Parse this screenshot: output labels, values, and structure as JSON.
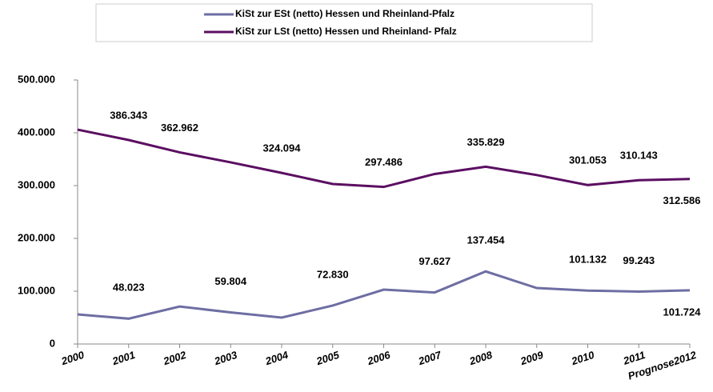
{
  "chart_data": {
    "type": "line",
    "categories": [
      "2000",
      "2001",
      "2002",
      "2003",
      "2004",
      "2005",
      "2006",
      "2007",
      "2008",
      "2009",
      "2010",
      "2011",
      "Prognose2012"
    ],
    "series": [
      {
        "name": "KiSt zur ESt (netto) Hessen und Rheinland-Pfalz",
        "color": "#6e6ea3",
        "values": [
          56000,
          48023,
          71000,
          59804,
          50000,
          72830,
          103000,
          97627,
          137454,
          106000,
          101132,
          99243,
          101724
        ],
        "value_labels": [
          null,
          "48.023",
          null,
          "59.804",
          null,
          "72.830",
          null,
          "97.627",
          "137.454",
          null,
          "101.132",
          "99.243",
          "101.724"
        ]
      },
      {
        "name": "KiSt zur LSt (netto)  Hessen und Rheinland- Pfalz",
        "color": "#5b0f61",
        "values": [
          406000,
          386343,
          362962,
          344000,
          324094,
          303000,
          297486,
          322000,
          335829,
          320000,
          301053,
          310143,
          312586
        ],
        "value_labels": [
          null,
          "386.343",
          "362.962",
          null,
          "324.094",
          null,
          "297.486",
          null,
          "335.829",
          null,
          "301.053",
          "310.143",
          "312.586"
        ]
      }
    ],
    "ylim": [
      0,
      500000
    ],
    "yticks": [
      0,
      {
        "value": 100000,
        "label": "100.000"
      },
      {
        "value": 200000,
        "label": "200.000"
      },
      {
        "value": 300000,
        "label": "300.000"
      },
      {
        "value": 400000,
        "label": "400.000"
      },
      {
        "value": 500000,
        "label": "500.000"
      }
    ],
    "legend": "top"
  }
}
